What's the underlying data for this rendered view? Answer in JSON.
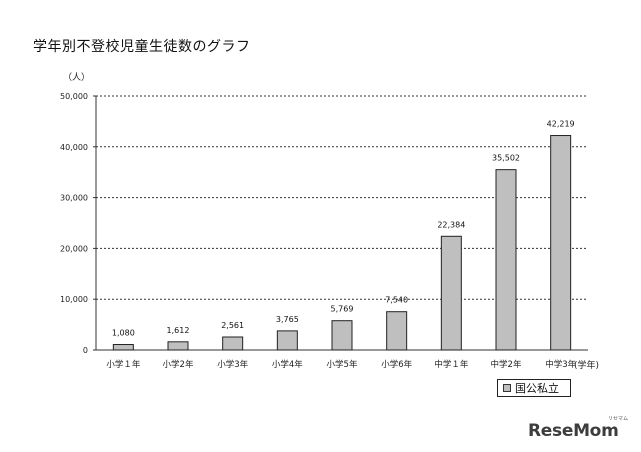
{
  "title": "学年別不登校児童生徒数のグラフ",
  "chart_data": {
    "type": "bar",
    "unit_label": "（人）",
    "x_unit_label": "(学年)",
    "categories": [
      "小学１年",
      "小学2年",
      "小学3年",
      "小学4年",
      "小学5年",
      "小学6年",
      "中学１年",
      "中学2年",
      "中学3年"
    ],
    "series": [
      {
        "name": "国公私立",
        "values": [
          1080,
          1612,
          2561,
          3765,
          5769,
          7540,
          22384,
          35502,
          42219
        ],
        "labels": [
          "1,080",
          "1,612",
          "2,561",
          "3,765",
          "5,769",
          "7,540",
          "22,384",
          "35,502",
          "42,219"
        ],
        "color": "#bfbfbf"
      }
    ],
    "ylim": [
      0,
      50000
    ],
    "yticks": [
      0,
      10000,
      20000,
      30000,
      40000,
      50000
    ],
    "ytick_labels": [
      "0",
      "10,000",
      "20,000",
      "30,000",
      "40,000",
      "50,000"
    ],
    "grid": "horizontal-dashed",
    "legend": "bottom-right"
  },
  "legend_label": "国公私立",
  "logo": {
    "text": "ReseMom",
    "kana": "リセマム"
  }
}
